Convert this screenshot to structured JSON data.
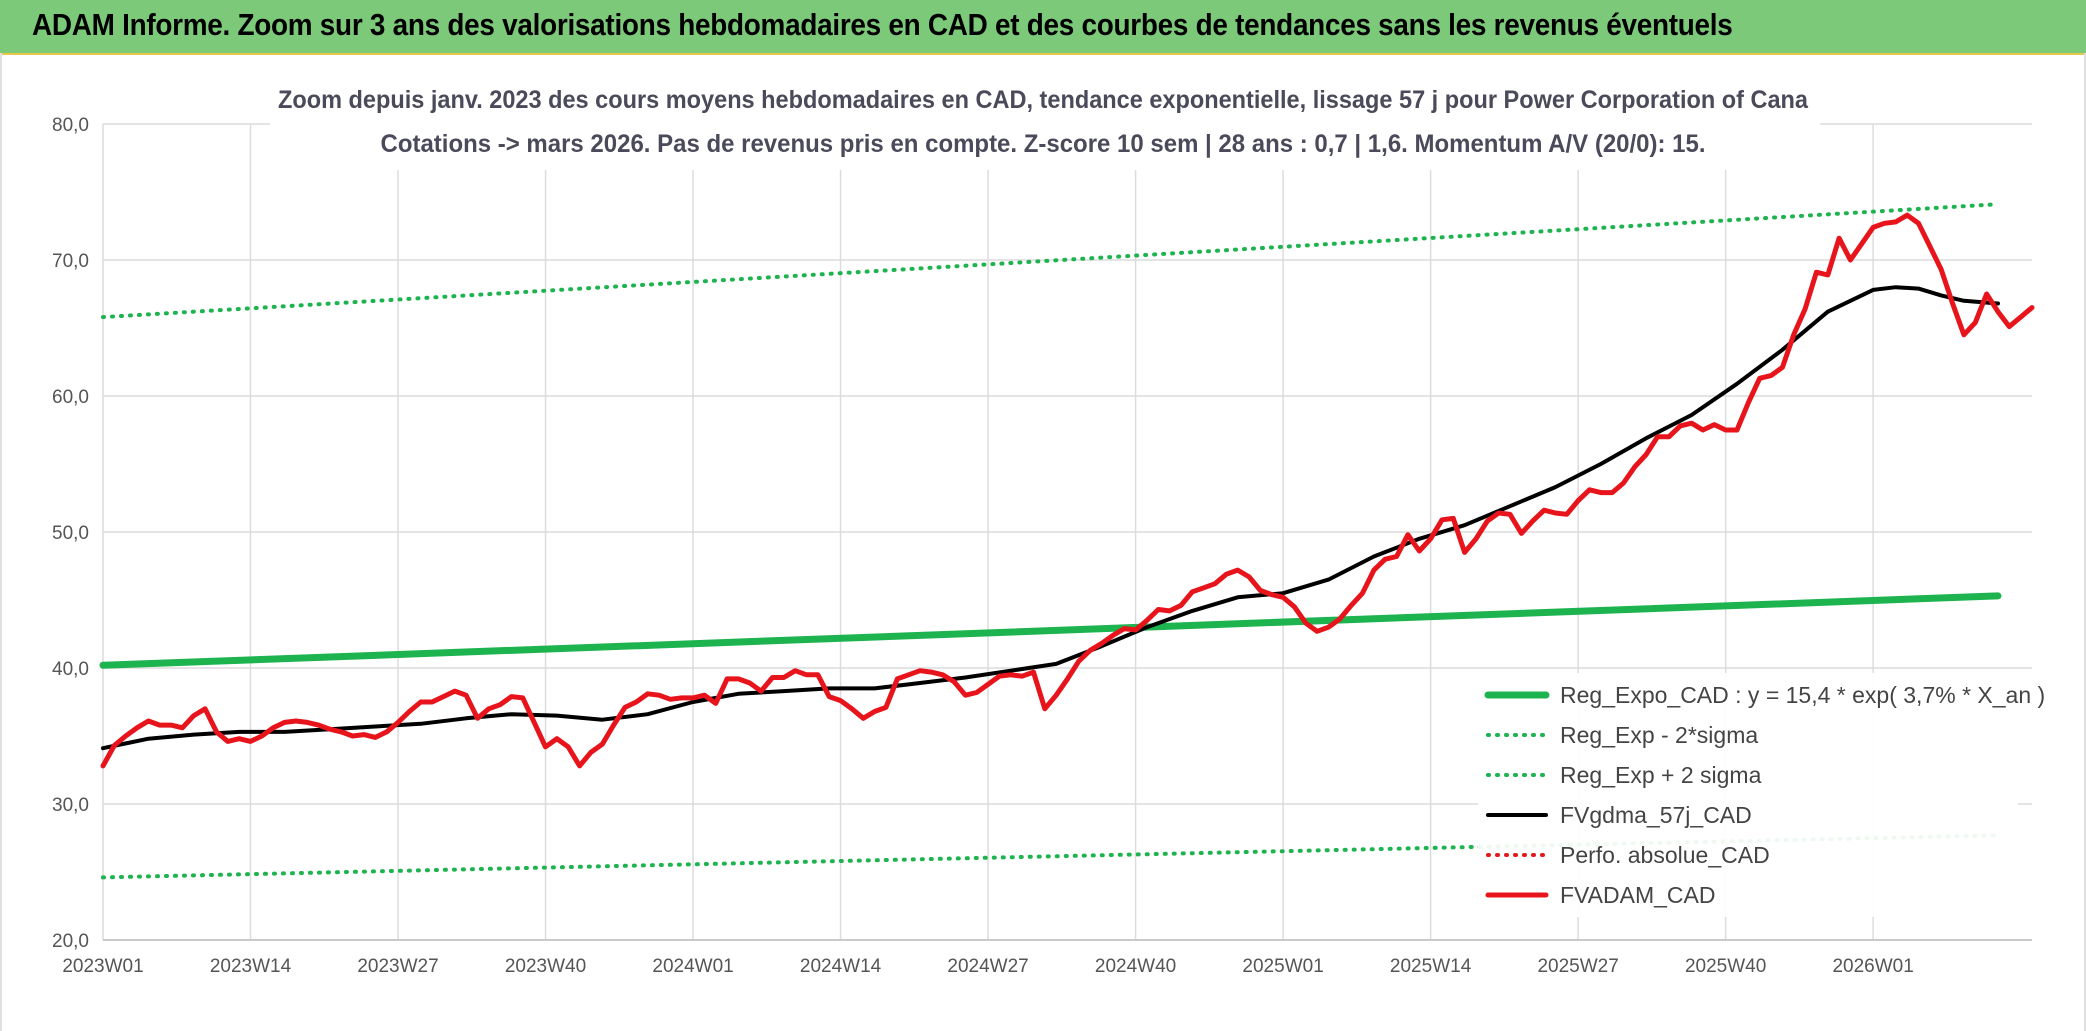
{
  "banner": {
    "title": "ADAM Informe. Zoom sur 3 ans des valorisations hebdomadaires en CAD et des courbes de tendances sans les revenus éventuels"
  },
  "colors": {
    "banner_bg": "#7dc97a",
    "reg_expo": "#1db34f",
    "sigma_lines": "#1db34f",
    "fvgdma": "#000000",
    "perfo": "#e31a1c",
    "fvadam": "#e8141c",
    "grid": "#dcdcdc"
  },
  "chart_data": {
    "type": "line",
    "title_lines": [
      "Zoom depuis janv. 2023 des cours moyens hebdomadaires en CAD, tendance exponentielle, lissage 57 j pour Power Corporation of Cana",
      "Cotations -> mars 2026. Pas de revenus pris en compte. Z-score 10 sem | 28 ans : 0,7 | 1,6. Momentum A/V (20/0): 15."
    ],
    "xlabel": "",
    "ylabel": "",
    "ylim": [
      20,
      80
    ],
    "yticks": [
      20,
      30,
      40,
      50,
      60,
      70,
      80
    ],
    "ytick_labels": [
      "20,0",
      "30,0",
      "40,0",
      "50,0",
      "60,0",
      "70,0",
      "80,0"
    ],
    "x_index_range": [
      0,
      167
    ],
    "xticks": [
      0,
      13,
      26,
      39,
      52,
      65,
      78,
      91,
      104,
      117,
      130,
      143,
      156
    ],
    "xtick_labels": [
      "2023W01",
      "2023W14",
      "2023W27",
      "2023W40",
      "2024W01",
      "2024W14",
      "2024W27",
      "2024W40",
      "2025W01",
      "2025W14",
      "2025W27",
      "2025W40",
      "2026W01"
    ],
    "grid": true,
    "legend_position": "bottom-right",
    "series": [
      {
        "name": "Reg_Expo_CAD : y = 15,4 * exp( 3,7% *  X_an )",
        "style": "solid-thick",
        "color": "#1db34f",
        "points": [
          [
            0,
            40.2
          ],
          [
            167,
            45.3
          ]
        ]
      },
      {
        "name": "Reg_Exp - 2*sigma",
        "style": "dotted",
        "color": "#1db34f",
        "points": [
          [
            0,
            24.6
          ],
          [
            167,
            27.7
          ]
        ]
      },
      {
        "name": "Reg_Exp + 2 sigma",
        "style": "dotted",
        "color": "#1db34f",
        "points": [
          [
            0,
            65.8
          ],
          [
            167,
            74.1
          ]
        ]
      },
      {
        "name": "FVgdma_57j_CAD",
        "style": "solid",
        "color": "#000000",
        "points": [
          [
            0,
            34.1
          ],
          [
            4,
            34.8
          ],
          [
            8,
            35.1
          ],
          [
            12,
            35.3
          ],
          [
            16,
            35.3
          ],
          [
            20,
            35.5
          ],
          [
            24,
            35.7
          ],
          [
            28,
            35.9
          ],
          [
            32,
            36.3
          ],
          [
            36,
            36.6
          ],
          [
            40,
            36.5
          ],
          [
            44,
            36.2
          ],
          [
            48,
            36.6
          ],
          [
            52,
            37.5
          ],
          [
            56,
            38.1
          ],
          [
            60,
            38.3
          ],
          [
            64,
            38.5
          ],
          [
            68,
            38.5
          ],
          [
            72,
            38.9
          ],
          [
            76,
            39.3
          ],
          [
            80,
            39.8
          ],
          [
            84,
            40.3
          ],
          [
            88,
            41.6
          ],
          [
            92,
            43.0
          ],
          [
            96,
            44.2
          ],
          [
            100,
            45.2
          ],
          [
            104,
            45.5
          ],
          [
            108,
            46.5
          ],
          [
            112,
            48.2
          ],
          [
            116,
            49.5
          ],
          [
            120,
            50.5
          ],
          [
            124,
            51.9
          ],
          [
            128,
            53.3
          ],
          [
            132,
            55.0
          ],
          [
            136,
            56.9
          ],
          [
            140,
            58.6
          ],
          [
            144,
            60.9
          ],
          [
            148,
            63.4
          ],
          [
            152,
            66.2
          ],
          [
            156,
            67.8
          ],
          [
            158,
            68.0
          ],
          [
            160,
            67.9
          ],
          [
            162,
            67.4
          ],
          [
            164,
            67.0
          ],
          [
            167,
            66.8
          ]
        ]
      },
      {
        "name": "Perfo. absolue_CAD",
        "style": "dotted",
        "color": "#e31a1c",
        "points": []
      },
      {
        "name": "FVADAM_CAD",
        "style": "solid-thick",
        "color": "#e8141c",
        "points": [
          [
            0,
            32.8
          ],
          [
            1,
            34.3
          ],
          [
            2,
            35.0
          ],
          [
            3,
            35.6
          ],
          [
            4,
            36.1
          ],
          [
            5,
            35.8
          ],
          [
            6,
            35.8
          ],
          [
            7,
            35.6
          ],
          [
            8,
            36.5
          ],
          [
            9,
            37.0
          ],
          [
            10,
            35.3
          ],
          [
            11,
            34.6
          ],
          [
            12,
            34.8
          ],
          [
            13,
            34.6
          ],
          [
            14,
            35.0
          ],
          [
            15,
            35.6
          ],
          [
            16,
            36.0
          ],
          [
            17,
            36.1
          ],
          [
            18,
            36.0
          ],
          [
            19,
            35.8
          ],
          [
            20,
            35.5
          ],
          [
            21,
            35.3
          ],
          [
            22,
            35.0
          ],
          [
            23,
            35.1
          ],
          [
            24,
            34.9
          ],
          [
            25,
            35.3
          ],
          [
            26,
            36.0
          ],
          [
            27,
            36.8
          ],
          [
            28,
            37.5
          ],
          [
            29,
            37.5
          ],
          [
            30,
            37.9
          ],
          [
            31,
            38.3
          ],
          [
            32,
            38.0
          ],
          [
            33,
            36.3
          ],
          [
            34,
            37.0
          ],
          [
            35,
            37.3
          ],
          [
            36,
            37.9
          ],
          [
            37,
            37.8
          ],
          [
            38,
            36.0
          ],
          [
            39,
            34.2
          ],
          [
            40,
            34.8
          ],
          [
            41,
            34.2
          ],
          [
            42,
            32.8
          ],
          [
            43,
            33.8
          ],
          [
            44,
            34.4
          ],
          [
            45,
            35.8
          ],
          [
            46,
            37.1
          ],
          [
            47,
            37.5
          ],
          [
            48,
            38.1
          ],
          [
            49,
            38.0
          ],
          [
            50,
            37.7
          ],
          [
            51,
            37.8
          ],
          [
            52,
            37.8
          ],
          [
            53,
            38.0
          ],
          [
            54,
            37.4
          ],
          [
            55,
            39.2
          ],
          [
            56,
            39.2
          ],
          [
            57,
            38.9
          ],
          [
            58,
            38.3
          ],
          [
            59,
            39.3
          ],
          [
            60,
            39.3
          ],
          [
            61,
            39.8
          ],
          [
            62,
            39.5
          ],
          [
            63,
            39.5
          ],
          [
            64,
            37.9
          ],
          [
            65,
            37.6
          ],
          [
            66,
            37.0
          ],
          [
            67,
            36.3
          ],
          [
            68,
            36.8
          ],
          [
            69,
            37.1
          ],
          [
            70,
            39.2
          ],
          [
            71,
            39.5
          ],
          [
            72,
            39.8
          ],
          [
            73,
            39.7
          ],
          [
            74,
            39.5
          ],
          [
            75,
            39.0
          ],
          [
            76,
            38.0
          ],
          [
            77,
            38.2
          ],
          [
            78,
            38.8
          ],
          [
            79,
            39.4
          ],
          [
            80,
            39.5
          ],
          [
            81,
            39.4
          ],
          [
            82,
            39.7
          ],
          [
            83,
            37.0
          ],
          [
            84,
            38.0
          ],
          [
            85,
            39.2
          ],
          [
            86,
            40.5
          ],
          [
            87,
            41.3
          ],
          [
            88,
            41.8
          ],
          [
            89,
            42.4
          ],
          [
            90,
            42.9
          ],
          [
            91,
            42.8
          ],
          [
            92,
            43.5
          ],
          [
            93,
            44.3
          ],
          [
            94,
            44.2
          ],
          [
            95,
            44.6
          ],
          [
            96,
            45.6
          ],
          [
            97,
            45.9
          ],
          [
            98,
            46.2
          ],
          [
            99,
            46.9
          ],
          [
            100,
            47.2
          ],
          [
            101,
            46.7
          ],
          [
            102,
            45.7
          ],
          [
            103,
            45.4
          ],
          [
            104,
            45.2
          ],
          [
            105,
            44.5
          ],
          [
            106,
            43.3
          ],
          [
            107,
            42.7
          ],
          [
            108,
            43.0
          ],
          [
            109,
            43.6
          ],
          [
            110,
            44.6
          ],
          [
            111,
            45.5
          ],
          [
            112,
            47.2
          ],
          [
            113,
            48.0
          ],
          [
            114,
            48.2
          ],
          [
            115,
            49.8
          ],
          [
            116,
            48.6
          ],
          [
            117,
            49.5
          ],
          [
            118,
            50.9
          ],
          [
            119,
            51.0
          ],
          [
            120,
            48.5
          ],
          [
            121,
            49.5
          ],
          [
            122,
            50.8
          ],
          [
            123,
            51.4
          ],
          [
            124,
            51.3
          ],
          [
            125,
            49.9
          ],
          [
            126,
            50.8
          ],
          [
            127,
            51.6
          ],
          [
            128,
            51.4
          ],
          [
            129,
            51.3
          ],
          [
            130,
            52.3
          ],
          [
            131,
            53.1
          ],
          [
            132,
            52.9
          ],
          [
            133,
            52.9
          ],
          [
            134,
            53.6
          ],
          [
            135,
            54.8
          ],
          [
            136,
            55.7
          ],
          [
            137,
            57.0
          ],
          [
            138,
            57.0
          ],
          [
            139,
            57.8
          ],
          [
            140,
            58.0
          ],
          [
            141,
            57.5
          ],
          [
            142,
            57.9
          ],
          [
            143,
            57.5
          ],
          [
            144,
            57.5
          ],
          [
            145,
            59.5
          ],
          [
            146,
            61.3
          ],
          [
            147,
            61.5
          ],
          [
            148,
            62.1
          ],
          [
            149,
            64.5
          ],
          [
            150,
            66.4
          ],
          [
            151,
            69.1
          ],
          [
            152,
            68.9
          ],
          [
            153,
            71.6
          ],
          [
            154,
            70.0
          ],
          [
            155,
            71.2
          ],
          [
            156,
            72.4
          ],
          [
            157,
            72.7
          ],
          [
            158,
            72.8
          ],
          [
            159,
            73.3
          ],
          [
            160,
            72.7
          ],
          [
            161,
            71.0
          ],
          [
            162,
            69.3
          ],
          [
            163,
            66.8
          ],
          [
            164,
            64.5
          ],
          [
            165,
            65.4
          ],
          [
            166,
            67.5
          ],
          [
            167,
            66.2
          ],
          [
            168,
            65.1
          ],
          [
            169,
            65.8
          ],
          [
            170,
            66.5
          ]
        ]
      }
    ]
  }
}
